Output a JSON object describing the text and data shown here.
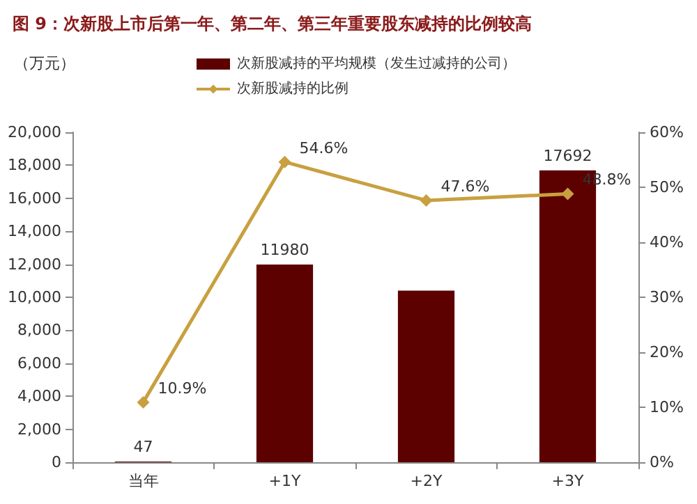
{
  "chart_data": {
    "type": "bar",
    "title": "图 9：次新股上市后第一年、第二年、第三年重要股东减持的比例较高",
    "ylabel": "（万元）",
    "categories": [
      "当年",
      "+1Y",
      "+2Y",
      "+3Y"
    ],
    "series": [
      {
        "name": "次新股减持的平均规模（发生过减持的公司）",
        "color": "#5c0000",
        "values": [
          47,
          11980,
          10400,
          17692
        ],
        "value_labels": [
          "47",
          "11980",
          null,
          "17692"
        ]
      },
      {
        "name": "次新股减持的比例",
        "type": "line",
        "axis": "y2",
        "color": "#c8a040",
        "marker": "diamond",
        "values": [
          10.9,
          54.6,
          47.6,
          48.8
        ],
        "value_labels": [
          "10.9%",
          "54.6%",
          "47.6%",
          "48.8%"
        ]
      }
    ],
    "ylim": [
      0,
      20000
    ],
    "yticks": [
      0,
      {
        "value": 2000,
        "label": "2,000"
      },
      {
        "value": 4000,
        "label": "4,000"
      },
      {
        "value": 6000,
        "label": "6,000"
      },
      {
        "value": 8000,
        "label": "8,000"
      },
      {
        "value": 10000,
        "label": "10,000"
      },
      {
        "value": 12000,
        "label": "12,000"
      },
      {
        "value": 14000,
        "label": "14,000"
      },
      {
        "value": 16000,
        "label": "16,000"
      },
      {
        "value": 18000,
        "label": "18,000"
      },
      {
        "value": 20000,
        "label": "20,000"
      }
    ],
    "y2lim": [
      0,
      60
    ],
    "y2ticks": [
      {
        "value": 0,
        "label": "0%"
      },
      {
        "value": 10,
        "label": "10%"
      },
      {
        "value": 20,
        "label": "20%"
      },
      {
        "value": 30,
        "label": "30%"
      },
      {
        "value": 40,
        "label": "40%"
      },
      {
        "value": 50,
        "label": "50%"
      },
      {
        "value": 60,
        "label": "60%"
      }
    ],
    "grid": false,
    "legend": "top"
  }
}
